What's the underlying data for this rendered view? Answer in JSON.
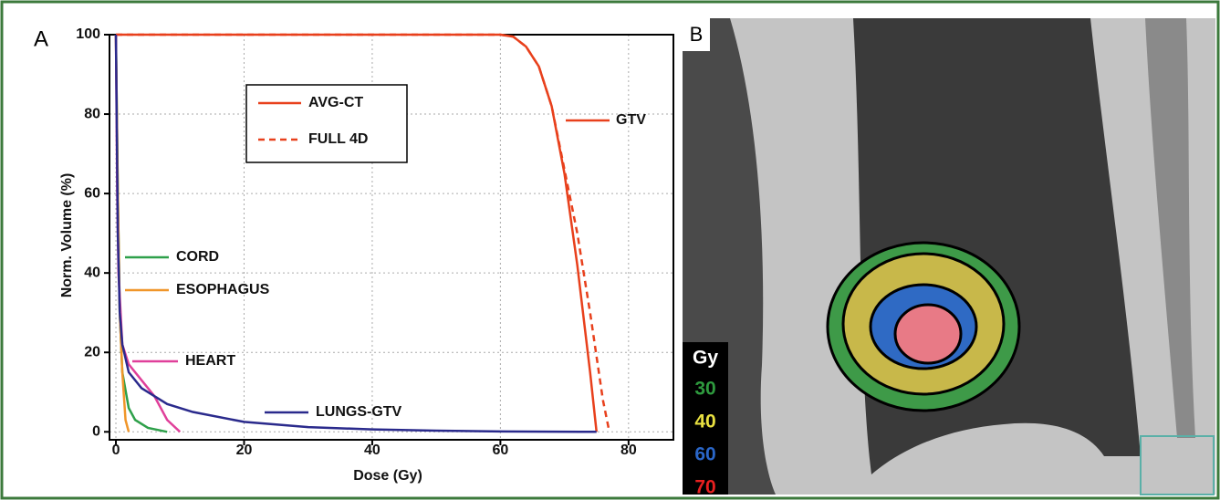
{
  "chart_data": {
    "type": "line",
    "panel_label": "A",
    "xlabel": "Dose (Gy)",
    "ylabel": "Norm. Volume (%)",
    "xlim": [
      -1,
      87
    ],
    "ylim": [
      -2,
      100
    ],
    "xticks": [
      0,
      20,
      40,
      60,
      80
    ],
    "yticks": [
      0,
      20,
      40,
      60,
      80,
      100
    ],
    "grid": true,
    "series": [
      {
        "name": "AVG-CT",
        "color": "#e8401c",
        "dash": false,
        "in_legend": true,
        "x": [
          0,
          60,
          62,
          64,
          66,
          68,
          70,
          72,
          74,
          75
        ],
        "values": [
          100,
          100,
          99.5,
          97,
          92,
          82,
          65,
          42,
          15,
          0
        ]
      },
      {
        "name": "FULL 4D",
        "color": "#e8401c",
        "dash": true,
        "in_legend": true,
        "x": [
          0,
          60,
          62,
          64,
          66,
          68,
          70,
          72,
          74,
          76,
          77
        ],
        "values": [
          100,
          100,
          99.5,
          97,
          92,
          82,
          66,
          50,
          30,
          8,
          0
        ]
      },
      {
        "name": "CORD",
        "color": "#2ea04a",
        "dash": false,
        "in_legend": false,
        "x": [
          0,
          0.3,
          0.6,
          1,
          2,
          3,
          5,
          8
        ],
        "values": [
          100,
          60,
          30,
          15,
          6,
          3,
          1,
          0
        ]
      },
      {
        "name": "ESOPHAGUS",
        "color": "#f0962a",
        "dash": false,
        "in_legend": false,
        "x": [
          0,
          0.3,
          0.6,
          1,
          1.5,
          2
        ],
        "values": [
          100,
          60,
          30,
          15,
          3,
          0
        ]
      },
      {
        "name": "HEART",
        "color": "#e0409a",
        "dash": false,
        "in_legend": false,
        "x": [
          0,
          0.2,
          0.4,
          1,
          2,
          4,
          6,
          8,
          10
        ],
        "values": [
          100,
          60,
          40,
          22,
          17,
          13,
          9,
          3,
          0
        ]
      },
      {
        "name": "LUNGS-GTV",
        "color": "#2a2a8c",
        "dash": false,
        "in_legend": false,
        "x": [
          0,
          0.3,
          0.6,
          1,
          2,
          4,
          8,
          12,
          20,
          30,
          40,
          50,
          60,
          75
        ],
        "values": [
          100,
          50,
          30,
          22,
          15,
          11,
          7,
          5,
          2.5,
          1.2,
          0.6,
          0.3,
          0.1,
          0
        ]
      }
    ],
    "annotations": [
      {
        "text": "GTV",
        "color": "#e8401c"
      }
    ]
  },
  "image": {
    "panel_label": "B",
    "legend_title": "Gy",
    "legend": [
      {
        "label": 30,
        "color": "#2e9a3e"
      },
      {
        "label": 40,
        "color": "#e8e040"
      },
      {
        "label": 60,
        "color": "#2a66c8"
      },
      {
        "label": 70,
        "color": "#e82020"
      }
    ]
  }
}
